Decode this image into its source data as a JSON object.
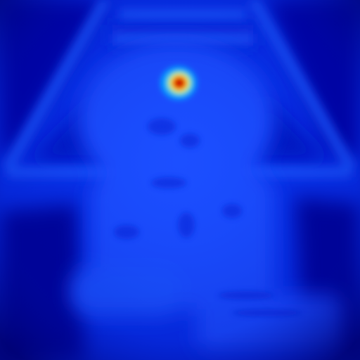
{
  "heatmap": {
    "colormap": "jet",
    "colors": {
      "background_low": "#00008c",
      "field_mid": "#0a3cf5",
      "field_bright": "#1e64ff",
      "hotspot_peak": "#a00000",
      "hotspot_ring": "#ffff00"
    },
    "hotspot": {
      "intensity": 1.0
    }
  }
}
